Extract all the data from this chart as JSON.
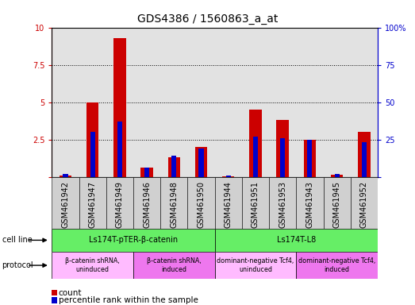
{
  "title": "GDS4386 / 1560863_a_at",
  "samples": [
    "GSM461942",
    "GSM461947",
    "GSM461949",
    "GSM461946",
    "GSM461948",
    "GSM461950",
    "GSM461944",
    "GSM461951",
    "GSM461953",
    "GSM461943",
    "GSM461945",
    "GSM461952"
  ],
  "counts": [
    0.1,
    5.0,
    9.3,
    0.6,
    1.3,
    2.0,
    0.05,
    4.5,
    3.8,
    2.5,
    0.15,
    3.0
  ],
  "percentile": [
    2,
    30,
    37,
    6,
    14,
    19,
    1,
    27,
    26,
    25,
    2,
    23
  ],
  "ylim_left": [
    0,
    10
  ],
  "ylim_right": [
    0,
    100
  ],
  "yticks_left": [
    0,
    2.5,
    5.0,
    7.5,
    10
  ],
  "yticks_right": [
    0,
    25,
    50,
    75,
    100
  ],
  "left_color": "#cc0000",
  "right_color": "#0000cc",
  "cell_line_groups": [
    {
      "label": "Ls174T-pTER-β-catenin",
      "start": 0,
      "end": 5,
      "color": "#66ee66"
    },
    {
      "label": "Ls174T-L8",
      "start": 6,
      "end": 11,
      "color": "#66ee66"
    }
  ],
  "protocol_groups": [
    {
      "label": "β-catenin shRNA,\nuninduced",
      "start": 0,
      "end": 2,
      "color": "#ffbbff"
    },
    {
      "label": "β-catenin shRNA,\ninduced",
      "start": 3,
      "end": 5,
      "color": "#ee77ee"
    },
    {
      "label": "dominant-negative Tcf4,\nuninduced",
      "start": 6,
      "end": 8,
      "color": "#ffbbff"
    },
    {
      "label": "dominant-negative Tcf4,\ninduced",
      "start": 9,
      "end": 11,
      "color": "#ee77ee"
    }
  ],
  "bg_color": "#ffffff",
  "title_color": "#000000",
  "title_fontsize": 10,
  "tick_fontsize": 7,
  "legend_fontsize": 7.5,
  "bar_gray": "#d0d0d0"
}
